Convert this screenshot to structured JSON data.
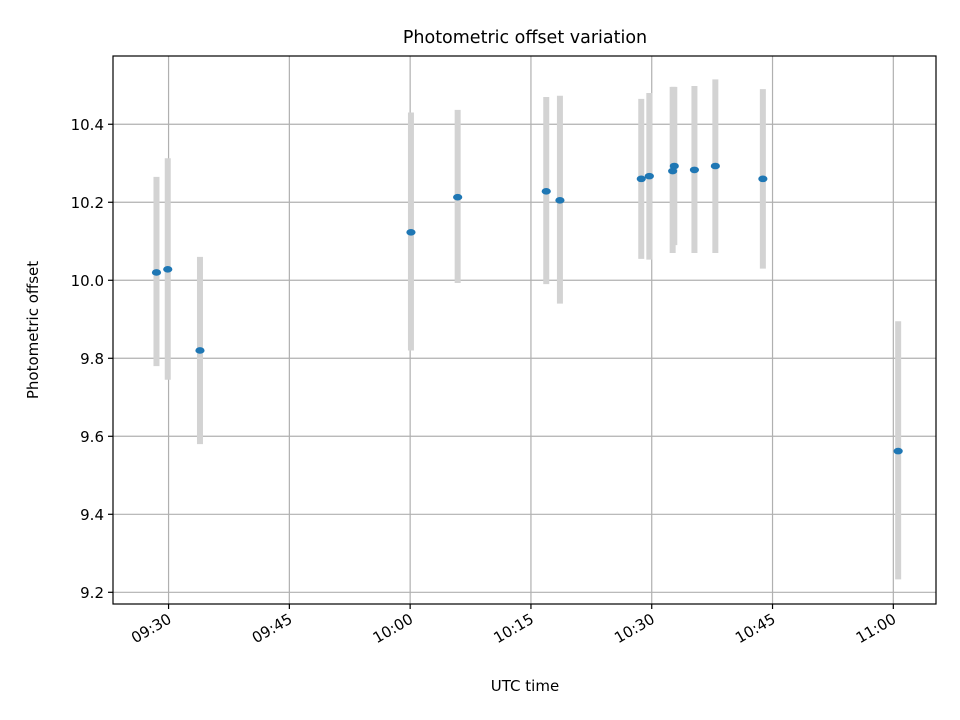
{
  "chart_data": {
    "type": "scatter",
    "title": "Photometric offset variation",
    "xlabel": "UTC time",
    "ylabel": "Photometric offset",
    "xlim": [
      "09:23:06",
      "11:05:18"
    ],
    "ylim": [
      9.17,
      10.575
    ],
    "x_ticks": [
      "09:30",
      "09:45",
      "10:00",
      "10:15",
      "10:30",
      "10:45",
      "11:00"
    ],
    "y_ticks": [
      "9.2",
      "9.4",
      "9.6",
      "9.8",
      "10.0",
      "10.2",
      "10.4"
    ],
    "grid": true,
    "series": [
      {
        "name": "Photometric offset",
        "marker_color": "#1f77b4",
        "errorbar_color": "#d3d3d3",
        "x": [
          "09:28:30",
          "09:29:54",
          "09:33:54",
          "10:00:06",
          "10:05:54",
          "10:16:54",
          "10:18:36",
          "10:28:42",
          "10:29:42",
          "10:32:36",
          "10:32:48",
          "10:35:18",
          "10:37:54",
          "10:43:48",
          "11:00:36"
        ],
        "y": [
          10.02,
          10.028,
          9.82,
          10.123,
          10.213,
          10.228,
          10.205,
          10.26,
          10.267,
          10.28,
          10.293,
          10.283,
          10.293,
          10.26,
          9.562
        ],
        "yerr_low": [
          9.78,
          9.745,
          9.58,
          9.82,
          9.993,
          9.99,
          9.94,
          10.055,
          10.053,
          10.07,
          10.09,
          10.07,
          10.07,
          10.03,
          9.233
        ],
        "yerr_high": [
          10.265,
          10.313,
          10.06,
          10.43,
          10.437,
          10.47,
          10.473,
          10.465,
          10.48,
          10.496,
          10.496,
          10.498,
          10.515,
          10.49,
          9.895
        ]
      }
    ]
  }
}
